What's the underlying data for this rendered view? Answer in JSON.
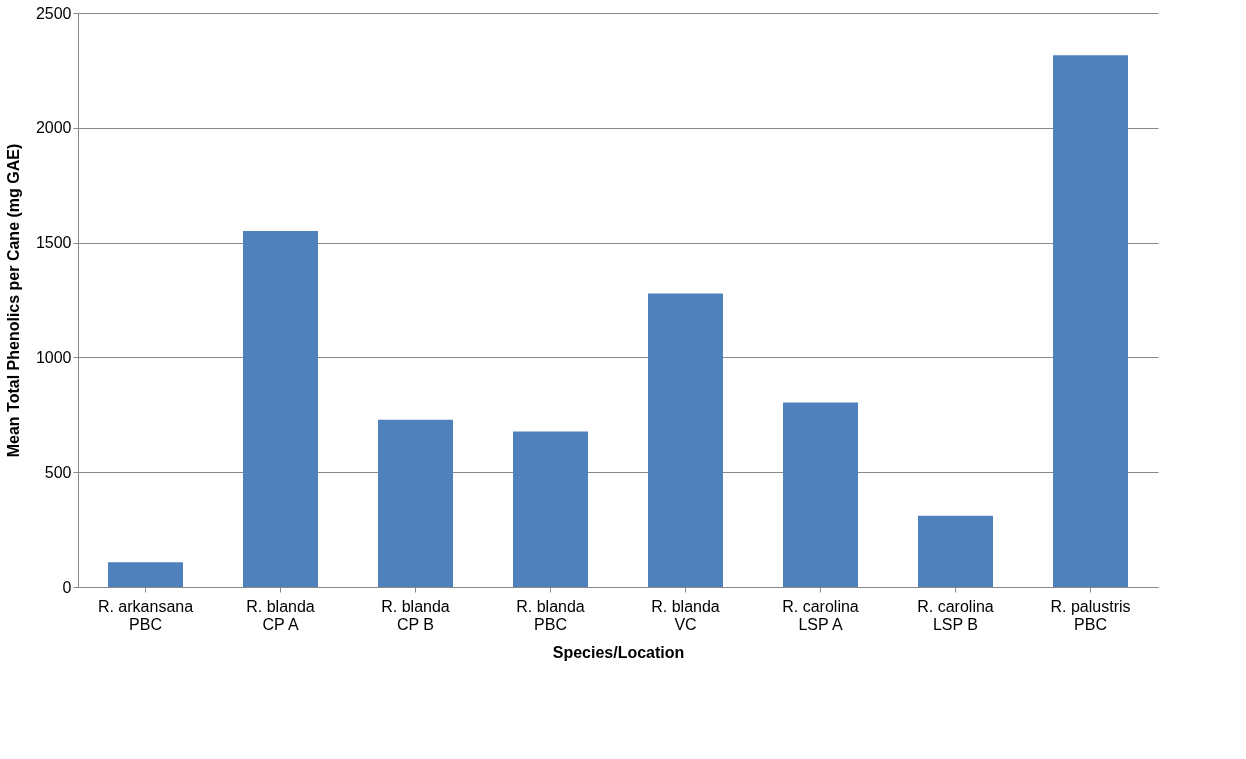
{
  "chart_data": {
    "type": "bar",
    "xlabel": "Species/Location",
    "ylabel": "Mean Total Phenolics per Cane (mg GAE)",
    "categories": [
      "R. arkansana\nPBC",
      "R. blanda\nCP A",
      "R. blanda\nCP B",
      "R. blanda\nPBC",
      "R. blanda\nVC",
      "R. carolina\nLSP A",
      "R. carolina\nLSP B",
      "R. palustris\nPBC"
    ],
    "values": [
      108,
      1551,
      728,
      677,
      1278,
      804,
      310,
      2316
    ],
    "color": "#4f81bd",
    "ylim": [
      0,
      2500
    ],
    "yticks": [
      0,
      500,
      1000,
      1500,
      2000,
      2500
    ],
    "grid": "y"
  }
}
